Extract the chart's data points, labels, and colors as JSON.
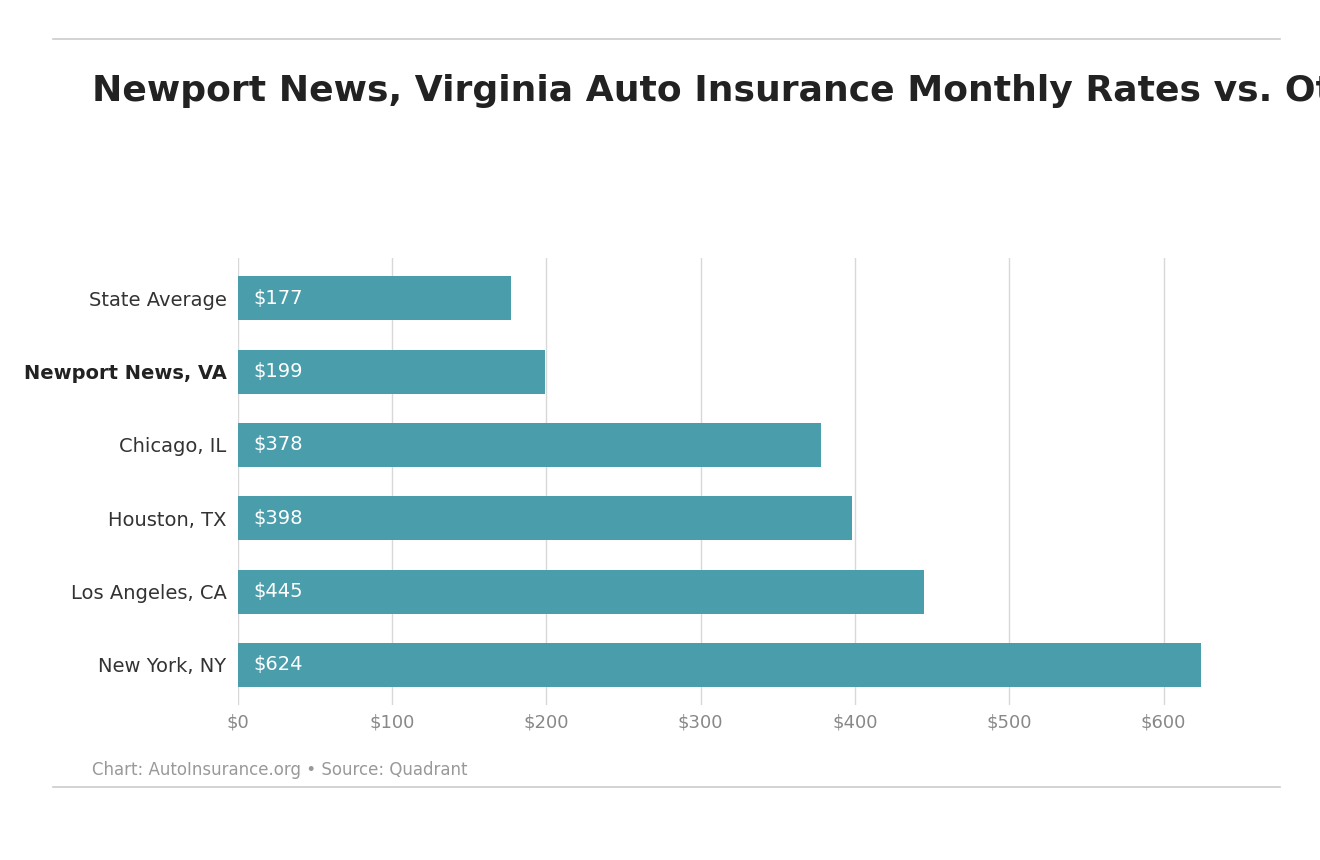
{
  "title": "Newport News, Virginia Auto Insurance Monthly Rates vs. Other U.S. Cities",
  "categories": [
    "New York, NY",
    "Los Angeles, CA",
    "Houston, TX",
    "Chicago, IL",
    "Newport News, VA",
    "State Average"
  ],
  "bold_index": 1,
  "values": [
    624,
    445,
    398,
    378,
    199,
    177
  ],
  "bold_category_display": "Newport News, VA",
  "bar_color": "#4a9eab",
  "label_color": "#ffffff",
  "xlim": [
    0,
    650
  ],
  "xticks": [
    0,
    100,
    200,
    300,
    400,
    500,
    600
  ],
  "xtick_labels": [
    "$0",
    "$100",
    "$200",
    "$300",
    "$400",
    "$500",
    "$600"
  ],
  "background_color": "#ffffff",
  "title_fontsize": 26,
  "category_fontsize": 14,
  "label_fontsize": 14,
  "tick_fontsize": 13,
  "footnote": "Chart: AutoInsurance.org • Source: Quadrant",
  "footnote_fontsize": 12,
  "bar_height": 0.6,
  "grid_color": "#d8d8d8",
  "title_color": "#222222",
  "category_color": "#333333",
  "tick_color": "#888888",
  "footnote_color": "#999999",
  "line_color": "#cccccc"
}
